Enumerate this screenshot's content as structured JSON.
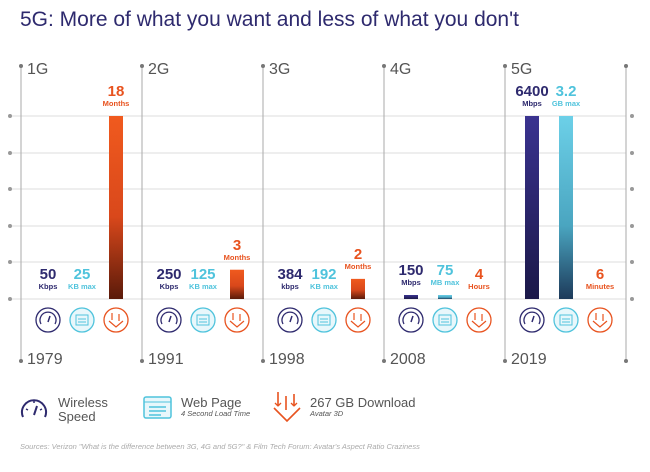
{
  "title": "5G: More of what you want and less of what you don't",
  "colors": {
    "speed": "#2e2a6e",
    "page": "#4fc3dc",
    "download": "#e8531f",
    "grid": "#dddddd"
  },
  "chart_data": {
    "type": "bar",
    "categories": [
      "1G",
      "2G",
      "3G",
      "4G",
      "5G"
    ],
    "years": [
      "1979",
      "1991",
      "1998",
      "2008",
      "2019"
    ],
    "series": [
      {
        "name": "Wireless Speed",
        "values": [
          "50",
          "250",
          "384",
          "150",
          "6400"
        ],
        "units": [
          "Kbps",
          "Kbps",
          "kbps",
          "Mbps",
          "Mbps"
        ],
        "bar_level": [
          0,
          0,
          0,
          0.02,
          1
        ]
      },
      {
        "name": "Web Page",
        "values": [
          "25",
          "125",
          "192",
          "75",
          "3.2"
        ],
        "units": [
          "KB max",
          "KB max",
          "KB max",
          "MB max",
          "GB max"
        ],
        "bar_level": [
          0,
          0,
          0,
          0.01,
          1
        ]
      },
      {
        "name": "267 GB Download",
        "values": [
          "18",
          "3",
          "2",
          "4",
          "6"
        ],
        "units": [
          "Months",
          "Months",
          "Months",
          "Hours",
          "Minutes"
        ],
        "bar_level": [
          1,
          0.16,
          0.11,
          0,
          0
        ]
      }
    ],
    "grid": true
  },
  "legend": {
    "speed": {
      "label1": "Wireless",
      "label2": "Speed",
      "icon": "speedometer-icon"
    },
    "page": {
      "label": "Web Page",
      "sub": "4 Second Load Time",
      "icon": "browser-window-icon"
    },
    "download": {
      "label": "267 GB Download",
      "sub": "Avatar 3D",
      "icon": "download-arrows-icon"
    }
  },
  "source": "Sources: Verizon \"What is the difference between 3G, 4G and 5G?\" & Film Tech Forum: Avatar's Aspect Ratio Craziness"
}
